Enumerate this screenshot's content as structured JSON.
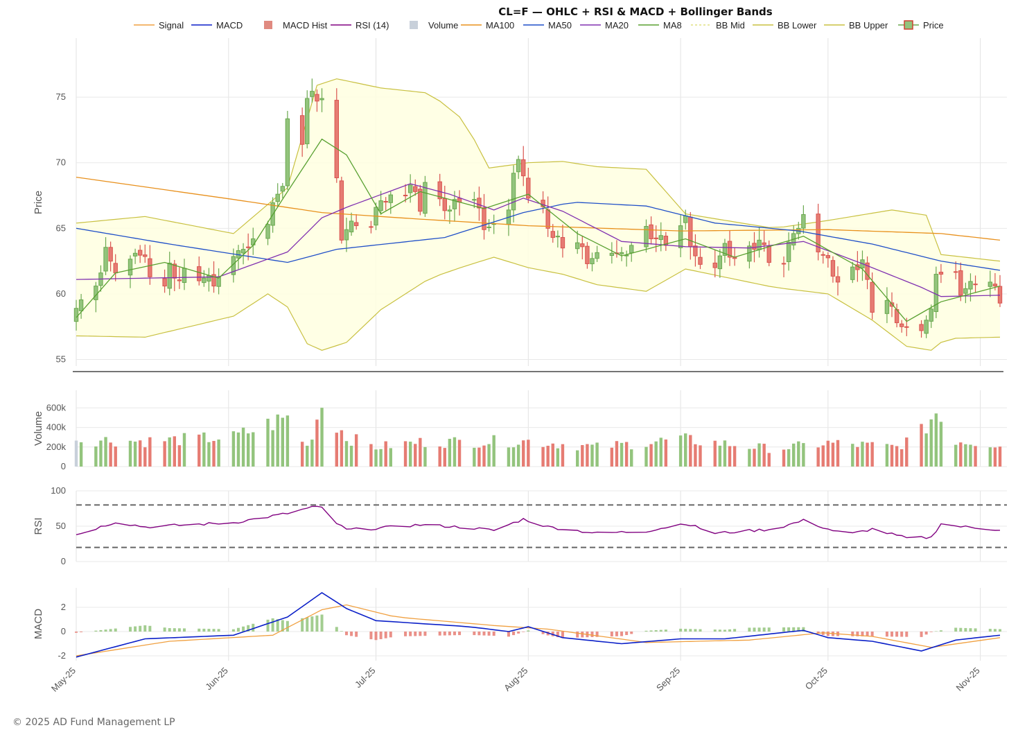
{
  "footer": "© 2025 AD Fund Management LP",
  "chart_data": {
    "type": "candlestick",
    "title": "CL=F — OHLC + RSI & MACD + Bollinger Bands",
    "legend": [
      {
        "name": "Signal",
        "kind": "line",
        "color": "#f0a040"
      },
      {
        "name": "MACD",
        "kind": "line",
        "color": "#0a1fc8"
      },
      {
        "name": "MACD Hist",
        "kind": "box",
        "color": "#e08a80"
      },
      {
        "name": "RSI (14)",
        "kind": "line",
        "color": "#800080"
      },
      {
        "name": "Volume",
        "kind": "box",
        "color": "#c8d0da"
      },
      {
        "name": "MA100",
        "kind": "line",
        "color": "#e8901c"
      },
      {
        "name": "MA50",
        "kind": "line",
        "color": "#1f4fc8"
      },
      {
        "name": "MA20",
        "kind": "line",
        "color": "#8030b0"
      },
      {
        "name": "MA8",
        "kind": "line",
        "color": "#58a030"
      },
      {
        "name": "BB Mid",
        "kind": "dash",
        "color": "#e0e080"
      },
      {
        "name": "BB Lower",
        "kind": "line",
        "color": "#c8c040"
      },
      {
        "name": "BB Upper",
        "kind": "line",
        "color": "#c8c040"
      },
      {
        "name": "Price",
        "kind": "candle",
        "color": "#d04030"
      }
    ],
    "x_ticks": [
      "May-25",
      "Jun-25",
      "Jul-25",
      "Aug-25",
      "Sep-25",
      "Oct-25",
      "Nov-25"
    ],
    "x_tick_dates": [
      "2025-05-01",
      "2025-06-01",
      "2025-07-01",
      "2025-08-01",
      "2025-09-01",
      "2025-10-01",
      "2025-11-01"
    ],
    "x_range": [
      "2025-05-01",
      "2025-11-05"
    ],
    "panels": {
      "price": {
        "ylabel": "Price",
        "yticks": [
          55,
          60,
          65,
          70,
          75
        ],
        "ylim": [
          54.5,
          79.5
        ]
      },
      "volume": {
        "ylabel": "Volume",
        "yticks": [
          0,
          200000,
          400000,
          600000
        ],
        "ytick_labels": [
          "0",
          "200k",
          "400k",
          "600k"
        ],
        "ylim": [
          0,
          780000
        ]
      },
      "rsi": {
        "ylabel": "RSI",
        "yticks": [
          0,
          50,
          100
        ],
        "ylim": [
          0,
          100
        ],
        "overbought": 80,
        "oversold": 20
      },
      "macd": {
        "ylabel": "MACD",
        "yticks": [
          -2,
          0,
          2
        ],
        "ylim": [
          -2.4,
          3.6
        ]
      }
    },
    "ohlc_anchors": [
      [
        "2025-05-01",
        58.9
      ],
      [
        "2025-05-02",
        59.2
      ],
      [
        "2025-05-05",
        60.9
      ],
      [
        "2025-05-06",
        61.6
      ],
      [
        "2025-05-07",
        63.2
      ],
      [
        "2025-05-08",
        62.8
      ],
      [
        "2025-05-09",
        61.6
      ],
      [
        "2025-05-12",
        62.3
      ],
      [
        "2025-05-13",
        63.4
      ],
      [
        "2025-05-15",
        62.5
      ],
      [
        "2025-05-16",
        61.6
      ],
      [
        "2025-05-19",
        60.6
      ],
      [
        "2025-05-20",
        62.0
      ],
      [
        "2025-05-22",
        61.0
      ],
      [
        "2025-05-23",
        61.6
      ],
      [
        "2025-05-27",
        61.2
      ],
      [
        "2025-05-29",
        60.9
      ],
      [
        "2025-06-02",
        62.5
      ],
      [
        "2025-06-03",
        63.6
      ],
      [
        "2025-06-05",
        63.2
      ],
      [
        "2025-06-06",
        64.5
      ],
      [
        "2025-06-09",
        65.3
      ],
      [
        "2025-06-11",
        67.9
      ],
      [
        "2025-06-12",
        68.2
      ],
      [
        "2025-06-13",
        73.0
      ],
      [
        "2025-06-16",
        71.7
      ],
      [
        "2025-06-17",
        74.9
      ],
      [
        "2025-06-18",
        75.1
      ],
      [
        "2025-06-19",
        75.0
      ],
      [
        "2025-06-20",
        74.9
      ],
      [
        "2025-06-23",
        68.5
      ],
      [
        "2025-06-24",
        64.4
      ],
      [
        "2025-06-25",
        64.9
      ],
      [
        "2025-06-26",
        65.2
      ],
      [
        "2025-06-27",
        65.5
      ],
      [
        "2025-06-30",
        65.1
      ],
      [
        "2025-07-02",
        67.4
      ],
      [
        "2025-07-03",
        67.0
      ],
      [
        "2025-07-07",
        67.8
      ],
      [
        "2025-07-08",
        68.3
      ],
      [
        "2025-07-10",
        66.6
      ],
      [
        "2025-07-11",
        68.5
      ],
      [
        "2025-07-14",
        66.9
      ],
      [
        "2025-07-16",
        66.4
      ],
      [
        "2025-07-18",
        67.3
      ],
      [
        "2025-07-21",
        67.2
      ],
      [
        "2025-07-23",
        65.2
      ],
      [
        "2025-07-25",
        65.0
      ],
      [
        "2025-07-28",
        66.7
      ],
      [
        "2025-07-29",
        69.2
      ],
      [
        "2025-07-30",
        69.9
      ],
      [
        "2025-07-31",
        69.3
      ],
      [
        "2025-08-01",
        67.3
      ],
      [
        "2025-08-04",
        66.3
      ],
      [
        "2025-08-06",
        64.3
      ],
      [
        "2025-08-08",
        63.8
      ],
      [
        "2025-08-11",
        63.9
      ],
      [
        "2025-08-13",
        62.6
      ],
      [
        "2025-08-15",
        62.8
      ],
      [
        "2025-08-18",
        63.4
      ],
      [
        "2025-08-20",
        62.8
      ],
      [
        "2025-08-22",
        63.7
      ],
      [
        "2025-08-25",
        64.8
      ],
      [
        "2025-08-27",
        64.2
      ],
      [
        "2025-08-29",
        64.0
      ],
      [
        "2025-09-02",
        65.6
      ],
      [
        "2025-09-03",
        63.9
      ],
      [
        "2025-09-05",
        61.9
      ],
      [
        "2025-09-08",
        62.3
      ],
      [
        "2025-09-10",
        63.5
      ],
      [
        "2025-09-12",
        62.7
      ],
      [
        "2025-09-15",
        63.3
      ],
      [
        "2025-09-17",
        64.1
      ],
      [
        "2025-09-19",
        62.7
      ],
      [
        "2025-09-22",
        62.3
      ],
      [
        "2025-09-24",
        64.9
      ],
      [
        "2025-09-25",
        65.0
      ],
      [
        "2025-09-26",
        65.7
      ],
      [
        "2025-09-29",
        63.5
      ],
      [
        "2025-10-01",
        62.4
      ],
      [
        "2025-10-03",
        60.9
      ],
      [
        "2025-10-06",
        61.7
      ],
      [
        "2025-10-08",
        62.6
      ],
      [
        "2025-10-10",
        58.9
      ],
      [
        "2025-10-13",
        59.5
      ],
      [
        "2025-10-14",
        58.7
      ],
      [
        "2025-10-16",
        57.5
      ],
      [
        "2025-10-17",
        57.1
      ],
      [
        "2025-10-20",
        57.5
      ],
      [
        "2025-10-22",
        58.5
      ],
      [
        "2025-10-23",
        61.8
      ],
      [
        "2025-10-24",
        61.5
      ],
      [
        "2025-10-27",
        61.3
      ],
      [
        "2025-10-28",
        60.2
      ],
      [
        "2025-10-30",
        60.6
      ],
      [
        "2025-10-31",
        61.0
      ],
      [
        "2025-11-03",
        60.9
      ],
      [
        "2025-11-05",
        59.6
      ]
    ],
    "ma100_anchors": [
      [
        "2025-05-01",
        68.9
      ],
      [
        "2025-06-02",
        67.2
      ],
      [
        "2025-06-20",
        66.2
      ],
      [
        "2025-07-10",
        65.7
      ],
      [
        "2025-08-01",
        65.2
      ],
      [
        "2025-09-01",
        64.8
      ],
      [
        "2025-10-01",
        64.9
      ],
      [
        "2025-10-24",
        64.6
      ],
      [
        "2025-11-05",
        64.1
      ]
    ],
    "ma50_anchors": [
      [
        "2025-05-01",
        65.0
      ],
      [
        "2025-05-20",
        63.8
      ],
      [
        "2025-06-13",
        62.4
      ],
      [
        "2025-06-23",
        63.4
      ],
      [
        "2025-07-15",
        64.3
      ],
      [
        "2025-07-31",
        66.2
      ],
      [
        "2025-08-10",
        67.0
      ],
      [
        "2025-08-25",
        66.7
      ],
      [
        "2025-09-08",
        65.4
      ],
      [
        "2025-09-25",
        64.8
      ],
      [
        "2025-10-10",
        63.8
      ],
      [
        "2025-10-24",
        62.5
      ],
      [
        "2025-11-05",
        61.8
      ]
    ],
    "ma20_anchors": [
      [
        "2025-05-01",
        61.1
      ],
      [
        "2025-05-15",
        61.2
      ],
      [
        "2025-05-30",
        61.3
      ],
      [
        "2025-06-13",
        63.2
      ],
      [
        "2025-06-20",
        65.8
      ],
      [
        "2025-06-25",
        66.6
      ],
      [
        "2025-07-08",
        68.4
      ],
      [
        "2025-07-16",
        67.6
      ],
      [
        "2025-07-25",
        66.4
      ],
      [
        "2025-07-31",
        67.3
      ],
      [
        "2025-08-08",
        66.3
      ],
      [
        "2025-08-20",
        64.0
      ],
      [
        "2025-09-02",
        63.6
      ],
      [
        "2025-09-15",
        63.5
      ],
      [
        "2025-09-26",
        64.0
      ],
      [
        "2025-10-08",
        62.3
      ],
      [
        "2025-10-20",
        60.5
      ],
      [
        "2025-10-24",
        59.8
      ],
      [
        "2025-11-05",
        59.9
      ]
    ],
    "ma8_anchors": [
      [
        "2025-05-01",
        58.2
      ],
      [
        "2025-05-09",
        61.6
      ],
      [
        "2025-05-19",
        62.4
      ],
      [
        "2025-05-30",
        61.2
      ],
      [
        "2025-06-06",
        63.7
      ],
      [
        "2025-06-13",
        67.8
      ],
      [
        "2025-06-20",
        71.8
      ],
      [
        "2025-06-25",
        70.6
      ],
      [
        "2025-07-02",
        66.1
      ],
      [
        "2025-07-10",
        67.8
      ],
      [
        "2025-07-23",
        66.5
      ],
      [
        "2025-08-01",
        67.6
      ],
      [
        "2025-08-11",
        64.6
      ],
      [
        "2025-08-20",
        62.9
      ],
      [
        "2025-09-02",
        64.2
      ],
      [
        "2025-09-12",
        62.8
      ],
      [
        "2025-09-26",
        64.4
      ],
      [
        "2025-10-08",
        61.9
      ],
      [
        "2025-10-17",
        57.9
      ],
      [
        "2025-10-24",
        59.4
      ],
      [
        "2025-11-05",
        60.6
      ]
    ],
    "bb_upper_anchors": [
      [
        "2025-05-01",
        65.4
      ],
      [
        "2025-05-15",
        65.9
      ],
      [
        "2025-06-02",
        64.6
      ],
      [
        "2025-06-13",
        68.1
      ],
      [
        "2025-06-19",
        75.9
      ],
      [
        "2025-06-23",
        76.4
      ],
      [
        "2025-07-02",
        75.7
      ],
      [
        "2025-07-12",
        75.3
      ],
      [
        "2025-07-19",
        73.2
      ],
      [
        "2025-07-24",
        69.6
      ],
      [
        "2025-08-01",
        70.0
      ],
      [
        "2025-08-08",
        70.1
      ],
      [
        "2025-08-15",
        69.7
      ],
      [
        "2025-08-25",
        69.5
      ],
      [
        "2025-09-02",
        66.1
      ],
      [
        "2025-09-20",
        65.0
      ],
      [
        "2025-10-01",
        65.6
      ],
      [
        "2025-10-14",
        66.4
      ],
      [
        "2025-10-21",
        66.0
      ],
      [
        "2025-10-24",
        63.0
      ],
      [
        "2025-11-05",
        62.5
      ]
    ],
    "bb_lower_anchors": [
      [
        "2025-05-01",
        56.8
      ],
      [
        "2025-05-15",
        56.7
      ],
      [
        "2025-06-02",
        58.3
      ],
      [
        "2025-06-09",
        60.0
      ],
      [
        "2025-06-13",
        59.0
      ],
      [
        "2025-06-17",
        56.2
      ],
      [
        "2025-06-20",
        55.7
      ],
      [
        "2025-06-25",
        56.3
      ],
      [
        "2025-07-02",
        58.8
      ],
      [
        "2025-07-12",
        61.2
      ],
      [
        "2025-07-19",
        62.1
      ],
      [
        "2025-07-25",
        62.8
      ],
      [
        "2025-08-01",
        62.0
      ],
      [
        "2025-08-08",
        61.5
      ],
      [
        "2025-08-15",
        60.7
      ],
      [
        "2025-08-25",
        60.2
      ],
      [
        "2025-09-02",
        61.9
      ],
      [
        "2025-09-20",
        60.5
      ],
      [
        "2025-10-01",
        60.0
      ],
      [
        "2025-10-10",
        58.0
      ],
      [
        "2025-10-17",
        56.0
      ],
      [
        "2025-10-22",
        55.7
      ],
      [
        "2025-10-25",
        56.6
      ],
      [
        "2025-11-05",
        56.7
      ]
    ],
    "volume_anchors": [
      [
        "2025-05-01",
        280000
      ],
      [
        "2025-05-15",
        260000
      ],
      [
        "2025-06-02",
        300000
      ],
      [
        "2025-06-13",
        500000
      ],
      [
        "2025-06-17",
        200000
      ],
      [
        "2025-06-20",
        640000
      ],
      [
        "2025-06-25",
        300000
      ],
      [
        "2025-07-01",
        200000
      ],
      [
        "2025-07-10",
        250000
      ],
      [
        "2025-08-01",
        260000
      ],
      [
        "2025-08-15",
        200000
      ],
      [
        "2025-09-01",
        280000
      ],
      [
        "2025-09-20",
        180000
      ],
      [
        "2025-10-01",
        240000
      ],
      [
        "2025-10-15",
        200000
      ],
      [
        "2025-10-20",
        350000
      ],
      [
        "2025-10-23",
        560000
      ],
      [
        "2025-10-27",
        270000
      ],
      [
        "2025-11-05",
        230000
      ]
    ],
    "rsi_anchors": [
      [
        "2025-05-01",
        38
      ],
      [
        "2025-05-09",
        56
      ],
      [
        "2025-05-15",
        49
      ],
      [
        "2025-06-02",
        55
      ],
      [
        "2025-06-13",
        68
      ],
      [
        "2025-06-18",
        77
      ],
      [
        "2025-06-20",
        76
      ],
      [
        "2025-06-23",
        54
      ],
      [
        "2025-06-25",
        45
      ],
      [
        "2025-07-01",
        47
      ],
      [
        "2025-07-10",
        52
      ],
      [
        "2025-07-20",
        48
      ],
      [
        "2025-07-25",
        44
      ],
      [
        "2025-07-31",
        60
      ],
      [
        "2025-08-05",
        49
      ],
      [
        "2025-08-15",
        40
      ],
      [
        "2025-08-25",
        43
      ],
      [
        "2025-09-02",
        54
      ],
      [
        "2025-09-08",
        40
      ],
      [
        "2025-09-20",
        46
      ],
      [
        "2025-09-26",
        58
      ],
      [
        "2025-10-01",
        46
      ],
      [
        "2025-10-05",
        38
      ],
      [
        "2025-10-10",
        46
      ],
      [
        "2025-10-17",
        33
      ],
      [
        "2025-10-22",
        34
      ],
      [
        "2025-10-24",
        54
      ],
      [
        "2025-10-27",
        50
      ],
      [
        "2025-11-05",
        45
      ]
    ],
    "macd_anchors": [
      [
        "2025-05-01",
        -2.1
      ],
      [
        "2025-05-15",
        -0.6
      ],
      [
        "2025-06-02",
        -0.3
      ],
      [
        "2025-06-13",
        1.2
      ],
      [
        "2025-06-20",
        3.2
      ],
      [
        "2025-06-25",
        1.9
      ],
      [
        "2025-07-01",
        0.9
      ],
      [
        "2025-07-20",
        0.4
      ],
      [
        "2025-07-28",
        0.0
      ],
      [
        "2025-08-01",
        0.4
      ],
      [
        "2025-08-08",
        -0.5
      ],
      [
        "2025-08-20",
        -1.0
      ],
      [
        "2025-09-01",
        -0.6
      ],
      [
        "2025-09-10",
        -0.6
      ],
      [
        "2025-09-26",
        0.1
      ],
      [
        "2025-10-01",
        -0.5
      ],
      [
        "2025-10-10",
        -0.8
      ],
      [
        "2025-10-20",
        -1.6
      ],
      [
        "2025-10-27",
        -0.7
      ],
      [
        "2025-11-05",
        -0.3
      ]
    ],
    "signal_anchors": [
      [
        "2025-05-01",
        -2.0
      ],
      [
        "2025-05-20",
        -0.8
      ],
      [
        "2025-06-10",
        -0.3
      ],
      [
        "2025-06-20",
        1.8
      ],
      [
        "2025-06-25",
        2.2
      ],
      [
        "2025-07-05",
        1.2
      ],
      [
        "2025-07-25",
        0.5
      ],
      [
        "2025-08-05",
        0.2
      ],
      [
        "2025-08-25",
        -0.9
      ],
      [
        "2025-09-15",
        -0.7
      ],
      [
        "2025-09-30",
        -0.1
      ],
      [
        "2025-10-10",
        -0.4
      ],
      [
        "2025-10-22",
        -1.3
      ],
      [
        "2025-11-05",
        -0.5
      ]
    ]
  }
}
